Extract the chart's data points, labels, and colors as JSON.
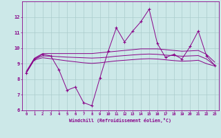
{
  "xlabel": "Windchill (Refroidissement éolien,°C)",
  "hours": [
    0,
    1,
    2,
    3,
    4,
    5,
    6,
    7,
    8,
    9,
    10,
    11,
    12,
    13,
    14,
    15,
    16,
    17,
    18,
    19,
    20,
    21,
    22,
    23
  ],
  "windchill": [
    8.4,
    9.3,
    9.6,
    9.5,
    8.6,
    7.3,
    7.5,
    6.5,
    6.3,
    8.1,
    9.8,
    11.3,
    10.4,
    11.1,
    11.7,
    12.5,
    10.3,
    9.4,
    9.6,
    9.3,
    10.1,
    11.1,
    9.5,
    8.9
  ],
  "tmax": [
    8.5,
    9.35,
    9.65,
    9.65,
    9.65,
    9.65,
    9.65,
    9.65,
    9.65,
    9.7,
    9.75,
    9.8,
    9.85,
    9.9,
    9.95,
    9.95,
    9.95,
    9.9,
    9.85,
    9.8,
    9.82,
    9.85,
    9.6,
    9.1
  ],
  "tmean": [
    8.4,
    9.3,
    9.5,
    9.48,
    9.45,
    9.42,
    9.4,
    9.38,
    9.36,
    9.38,
    9.42,
    9.48,
    9.52,
    9.56,
    9.6,
    9.62,
    9.6,
    9.55,
    9.52,
    9.48,
    9.5,
    9.52,
    9.3,
    8.9
  ],
  "tmin": [
    8.4,
    9.25,
    9.38,
    9.32,
    9.25,
    9.18,
    9.12,
    9.06,
    9.02,
    9.06,
    9.12,
    9.18,
    9.22,
    9.26,
    9.3,
    9.32,
    9.3,
    9.25,
    9.2,
    9.16,
    9.18,
    9.22,
    9.0,
    8.85
  ],
  "line_color": "#880088",
  "bg_color": "#cce8e8",
  "grid_color": "#aacccc",
  "ylim": [
    6,
    13
  ],
  "yticks": [
    6,
    7,
    8,
    9,
    10,
    11,
    12
  ],
  "marker": "+"
}
